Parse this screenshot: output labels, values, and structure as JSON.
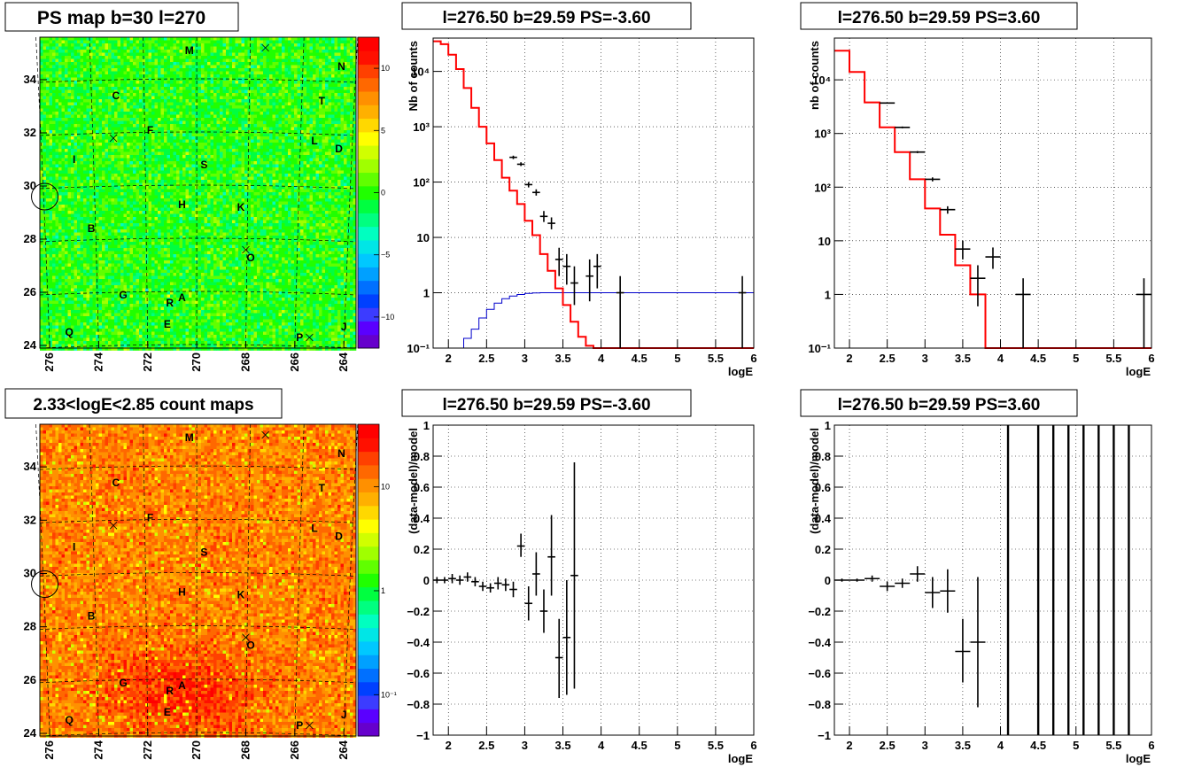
{
  "chart_data": [
    {
      "type": "heatmap",
      "title": "PS map b=30 l=270",
      "x_ticks": [
        "276",
        "274",
        "272",
        "270",
        "268",
        "266",
        "264"
      ],
      "x_tick_values": [
        276,
        274,
        272,
        270,
        268,
        266,
        264
      ],
      "y_ticks": [
        "24",
        "26",
        "28",
        "30",
        "32",
        "34"
      ],
      "y_tick_values": [
        24,
        26,
        28,
        30,
        32,
        34
      ],
      "xlim": [
        276.4,
        263.5
      ],
      "ylim": [
        23.9,
        35.6
      ],
      "palette_ticks": [
        "10",
        "5",
        "0",
        "−5",
        "−10"
      ],
      "palette_tick_values": [
        10,
        5,
        0,
        -5,
        -10
      ],
      "palette_range": [
        -12.5,
        12.5
      ],
      "source_labels": [
        {
          "name": "M",
          "l": 270.3,
          "b": 35.1
        },
        {
          "name": "N",
          "l": 264.1,
          "b": 34.5
        },
        {
          "name": "C",
          "l": 273.3,
          "b": 33.4
        },
        {
          "name": "T",
          "l": 264.9,
          "b": 33.2
        },
        {
          "name": "F",
          "l": 271.9,
          "b": 32.1
        },
        {
          "name": "L",
          "l": 265.2,
          "b": 31.7
        },
        {
          "name": "D",
          "l": 264.2,
          "b": 31.4
        },
        {
          "name": "I",
          "l": 275.0,
          "b": 31.0
        },
        {
          "name": "S",
          "l": 269.7,
          "b": 30.8
        },
        {
          "name": "H",
          "l": 270.6,
          "b": 29.3
        },
        {
          "name": "K",
          "l": 268.2,
          "b": 29.2
        },
        {
          "name": "B",
          "l": 274.3,
          "b": 28.4
        },
        {
          "name": "O",
          "l": 267.8,
          "b": 27.3
        },
        {
          "name": "G",
          "l": 273.0,
          "b": 25.9
        },
        {
          "name": "R",
          "l": 271.1,
          "b": 25.6
        },
        {
          "name": "A",
          "l": 270.6,
          "b": 25.8
        },
        {
          "name": "E",
          "l": 271.2,
          "b": 24.8
        },
        {
          "name": "Q",
          "l": 275.2,
          "b": 24.5
        },
        {
          "name": "P",
          "l": 265.8,
          "b": 24.3
        },
        {
          "name": "J",
          "l": 264.0,
          "b": 24.7
        }
      ],
      "markers_x": [
        {
          "l": 267.2,
          "b": 35.2
        },
        {
          "l": 273.4,
          "b": 31.8
        },
        {
          "l": 268.0,
          "b": 27.6
        },
        {
          "l": 265.4,
          "b": 24.3
        }
      ],
      "circle": {
        "l": 276.2,
        "b": 29.6
      }
    },
    {
      "type": "line",
      "title": "l=276.50 b=29.59 PS=-3.60",
      "xlabel": "logE",
      "ylabel": "Nb of counts",
      "xlim": [
        1.8,
        6.0
      ],
      "ylim": [
        0.1,
        40000
      ],
      "log_y": true,
      "x_ticks": [
        "2",
        "2.5",
        "3",
        "3.5",
        "4",
        "4.5",
        "5",
        "5.5",
        "6"
      ],
      "x_tick_values": [
        2,
        2.5,
        3,
        3.5,
        4,
        4.5,
        5,
        5.5,
        6
      ],
      "y_ticks": [
        "10⁻¹",
        "1",
        "10",
        "10²",
        "10³",
        "10⁴"
      ],
      "y_tick_values": [
        0.1,
        1,
        10,
        100,
        1000,
        10000
      ],
      "grid": true,
      "bin_width": 0.1,
      "red_hist": {
        "start": 1.8,
        "values": [
          35000,
          31000,
          20000,
          11000,
          5000,
          2200,
          1000,
          500,
          250,
          120,
          70,
          40,
          20,
          11,
          5,
          2.5,
          1.2,
          0.6,
          0.3,
          0.16,
          0.11,
          0.1,
          0.1,
          0.1,
          0.1,
          0.1,
          0.1,
          0.1,
          0.1,
          0.1,
          0.1,
          0.1,
          0.1,
          0.1,
          0.1,
          0.1,
          0.1,
          0.1,
          0.1,
          0.1,
          0.1,
          0.1
        ]
      },
      "blue_hist": {
        "start": 2.0,
        "values": [
          0.1,
          0.1,
          0.15,
          0.22,
          0.35,
          0.5,
          0.65,
          0.78,
          0.87,
          0.93,
          0.97,
          0.99,
          1,
          1,
          1,
          1,
          1,
          1,
          1,
          1,
          1,
          1,
          1,
          1,
          1,
          1,
          1,
          1,
          1,
          1,
          1,
          1,
          1,
          1,
          1,
          1,
          1,
          1,
          1,
          1
        ]
      },
      "points": [
        {
          "x": 2.85,
          "y": 280,
          "lo": 260,
          "hi": 300
        },
        {
          "x": 2.95,
          "y": 210,
          "lo": 195,
          "hi": 228
        },
        {
          "x": 3.05,
          "y": 90,
          "lo": 80,
          "hi": 100
        },
        {
          "x": 3.15,
          "y": 65,
          "lo": 57,
          "hi": 74
        },
        {
          "x": 3.25,
          "y": 24,
          "lo": 19,
          "hi": 30
        },
        {
          "x": 3.35,
          "y": 18,
          "lo": 14,
          "hi": 23
        },
        {
          "x": 3.45,
          "y": 4,
          "lo": 2,
          "hi": 6.5
        },
        {
          "x": 3.55,
          "y": 3,
          "lo": 1.4,
          "hi": 5
        },
        {
          "x": 3.65,
          "y": 1.5,
          "lo": 0.6,
          "hi": 3
        },
        {
          "x": 3.85,
          "y": 2,
          "lo": 0.7,
          "hi": 4
        },
        {
          "x": 3.95,
          "y": 3,
          "lo": 1.2,
          "hi": 5
        },
        {
          "x": 4.25,
          "y": 1,
          "lo": 0.1,
          "hi": 2
        },
        {
          "x": 5.85,
          "y": 1,
          "lo": 0.1,
          "hi": 2
        }
      ]
    },
    {
      "type": "line",
      "title": "l=276.50 b=29.59 PS=3.60",
      "xlabel": "logE",
      "ylabel": "nb of counts",
      "xlim": [
        1.8,
        6.0
      ],
      "ylim": [
        0.1,
        60000
      ],
      "log_y": true,
      "x_ticks": [
        "2",
        "2.5",
        "3",
        "3.5",
        "4",
        "4.5",
        "5",
        "5.5",
        "6"
      ],
      "x_tick_values": [
        2,
        2.5,
        3,
        3.5,
        4,
        4.5,
        5,
        5.5,
        6
      ],
      "y_ticks": [
        "10⁻¹",
        "1",
        "10",
        "10²",
        "10³",
        "10⁴"
      ],
      "y_tick_values": [
        0.1,
        1,
        10,
        100,
        1000,
        10000
      ],
      "grid": true,
      "bin_width": 0.2,
      "red_hist": {
        "start": 1.8,
        "values": [
          35000,
          14000,
          3800,
          1300,
          450,
          140,
          40,
          13,
          3.5,
          1,
          0.1,
          0.1,
          0.1,
          0.1,
          0.1,
          0.1,
          0.1,
          0.1,
          0.1,
          0.1,
          0.1
        ]
      },
      "points": [
        {
          "x": 2.5,
          "y": 3700,
          "lo": 3600,
          "hi": 3800
        },
        {
          "x": 2.7,
          "y": 1300,
          "lo": 1250,
          "hi": 1350
        },
        {
          "x": 2.9,
          "y": 450,
          "lo": 430,
          "hi": 470
        },
        {
          "x": 3.1,
          "y": 140,
          "lo": 128,
          "hi": 152
        },
        {
          "x": 3.3,
          "y": 38,
          "lo": 32,
          "hi": 44
        },
        {
          "x": 3.5,
          "y": 7,
          "lo": 4.5,
          "hi": 10
        },
        {
          "x": 3.7,
          "y": 2,
          "lo": 0.6,
          "hi": 3.5
        },
        {
          "x": 3.9,
          "y": 5,
          "lo": 3,
          "hi": 7.5
        },
        {
          "x": 4.3,
          "y": 1,
          "lo": 0.1,
          "hi": 2
        },
        {
          "x": 5.9,
          "y": 1,
          "lo": 0.1,
          "hi": 2
        }
      ]
    },
    {
      "type": "heatmap",
      "title": "2.33<logE<2.85 count maps",
      "x_ticks": [
        "276",
        "274",
        "272",
        "270",
        "268",
        "266",
        "264"
      ],
      "x_tick_values": [
        276,
        274,
        272,
        270,
        268,
        266,
        264
      ],
      "y_ticks": [
        "24",
        "26",
        "28",
        "30",
        "32",
        "34"
      ],
      "y_tick_values": [
        24,
        26,
        28,
        30,
        32,
        34
      ],
      "xlim": [
        276.4,
        263.5
      ],
      "ylim": [
        23.9,
        35.6
      ],
      "palette_ticks": [
        "10",
        "1",
        "10⁻¹"
      ],
      "palette_tick_values": [
        10,
        1,
        0.1
      ],
      "palette_log_range": [
        0.04,
        40
      ],
      "source_labels": [
        {
          "name": "M",
          "l": 270.3,
          "b": 35.1
        },
        {
          "name": "N",
          "l": 264.1,
          "b": 34.5
        },
        {
          "name": "C",
          "l": 273.3,
          "b": 33.4
        },
        {
          "name": "T",
          "l": 264.9,
          "b": 33.2
        },
        {
          "name": "F",
          "l": 271.9,
          "b": 32.1
        },
        {
          "name": "L",
          "l": 265.2,
          "b": 31.7
        },
        {
          "name": "D",
          "l": 264.2,
          "b": 31.4
        },
        {
          "name": "I",
          "l": 275.0,
          "b": 31.0
        },
        {
          "name": "S",
          "l": 269.7,
          "b": 30.8
        },
        {
          "name": "H",
          "l": 270.6,
          "b": 29.3
        },
        {
          "name": "K",
          "l": 268.2,
          "b": 29.2
        },
        {
          "name": "B",
          "l": 274.3,
          "b": 28.4
        },
        {
          "name": "O",
          "l": 267.8,
          "b": 27.3
        },
        {
          "name": "G",
          "l": 273.0,
          "b": 25.9
        },
        {
          "name": "R",
          "l": 271.1,
          "b": 25.6
        },
        {
          "name": "A",
          "l": 270.6,
          "b": 25.8
        },
        {
          "name": "E",
          "l": 271.2,
          "b": 24.8
        },
        {
          "name": "Q",
          "l": 275.2,
          "b": 24.5
        },
        {
          "name": "P",
          "l": 265.8,
          "b": 24.3
        },
        {
          "name": "J",
          "l": 264.0,
          "b": 24.7
        }
      ],
      "markers_x": [
        {
          "l": 267.2,
          "b": 35.2
        },
        {
          "l": 273.4,
          "b": 31.8
        },
        {
          "l": 268.0,
          "b": 27.6
        },
        {
          "l": 265.4,
          "b": 24.3
        }
      ],
      "circle": {
        "l": 276.2,
        "b": 29.6
      }
    },
    {
      "type": "scatter",
      "title": "l=276.50 b=29.59 PS=-3.60",
      "xlabel": "logE",
      "ylabel": "(data-model)/model",
      "xlim": [
        1.8,
        6.0
      ],
      "ylim": [
        -1,
        1
      ],
      "x_ticks": [
        "2",
        "2.5",
        "3",
        "3.5",
        "4",
        "4.5",
        "5",
        "5.5",
        "6"
      ],
      "x_tick_values": [
        2,
        2.5,
        3,
        3.5,
        4,
        4.5,
        5,
        5.5,
        6
      ],
      "y_ticks": [
        "−1",
        "−0.8",
        "−0.6",
        "−0.4",
        "−0.2",
        "0",
        "0.2",
        "0.4",
        "0.6",
        "0.8",
        "1"
      ],
      "y_tick_values": [
        -1,
        -0.8,
        -0.6,
        -0.4,
        -0.2,
        0,
        0.2,
        0.4,
        0.6,
        0.8,
        1
      ],
      "grid": true,
      "half_width": 0.05,
      "points": [
        {
          "x": 1.85,
          "y": 0.0,
          "lo": -0.02,
          "hi": 0.02
        },
        {
          "x": 1.95,
          "y": 0.0,
          "lo": -0.02,
          "hi": 0.02
        },
        {
          "x": 2.05,
          "y": 0.01,
          "lo": -0.02,
          "hi": 0.04
        },
        {
          "x": 2.15,
          "y": 0.0,
          "lo": -0.03,
          "hi": 0.03
        },
        {
          "x": 2.25,
          "y": 0.02,
          "lo": -0.01,
          "hi": 0.05
        },
        {
          "x": 2.35,
          "y": -0.01,
          "lo": -0.04,
          "hi": 0.02
        },
        {
          "x": 2.45,
          "y": -0.04,
          "lo": -0.07,
          "hi": -0.01
        },
        {
          "x": 2.55,
          "y": -0.05,
          "lo": -0.08,
          "hi": -0.02
        },
        {
          "x": 2.65,
          "y": -0.02,
          "lo": -0.06,
          "hi": 0.02
        },
        {
          "x": 2.75,
          "y": -0.03,
          "lo": -0.07,
          "hi": 0.01
        },
        {
          "x": 2.85,
          "y": -0.06,
          "lo": -0.11,
          "hi": -0.01
        },
        {
          "x": 2.95,
          "y": 0.22,
          "lo": 0.15,
          "hi": 0.3
        },
        {
          "x": 3.05,
          "y": -0.15,
          "lo": -0.26,
          "hi": -0.04
        },
        {
          "x": 3.15,
          "y": 0.04,
          "lo": -0.1,
          "hi": 0.18
        },
        {
          "x": 3.25,
          "y": -0.2,
          "lo": -0.34,
          "hi": -0.06
        },
        {
          "x": 3.35,
          "y": 0.15,
          "lo": -0.1,
          "hi": 0.42
        },
        {
          "x": 3.45,
          "y": -0.5,
          "lo": -0.76,
          "hi": -0.25
        },
        {
          "x": 3.55,
          "y": -0.37,
          "lo": -0.74,
          "hi": 0.0
        },
        {
          "x": 3.65,
          "y": 0.03,
          "lo": -0.7,
          "hi": 0.76
        }
      ]
    },
    {
      "type": "scatter",
      "title": "l=276.50 b=29.59 PS=3.60",
      "xlabel": "logE",
      "ylabel": "(data-model)/model",
      "xlim": [
        1.8,
        6.0
      ],
      "ylim": [
        -1,
        1
      ],
      "x_ticks": [
        "2",
        "2.5",
        "3",
        "3.5",
        "4",
        "4.5",
        "5",
        "5.5",
        "6"
      ],
      "x_tick_values": [
        2,
        2.5,
        3,
        3.5,
        4,
        4.5,
        5,
        5.5,
        6
      ],
      "y_ticks": [
        "−1",
        "−0.8",
        "−0.6",
        "−0.4",
        "−0.2",
        "0",
        "0.2",
        "0.4",
        "0.6",
        "0.8",
        "1"
      ],
      "y_tick_values": [
        -1,
        -0.8,
        -0.6,
        -0.4,
        -0.2,
        0,
        0.2,
        0.4,
        0.6,
        0.8,
        1
      ],
      "grid": true,
      "half_width": 0.1,
      "points": [
        {
          "x": 1.9,
          "y": 0.0,
          "lo": -0.01,
          "hi": 0.01
        },
        {
          "x": 2.1,
          "y": 0.0,
          "lo": -0.01,
          "hi": 0.01
        },
        {
          "x": 2.3,
          "y": 0.01,
          "lo": -0.01,
          "hi": 0.03
        },
        {
          "x": 2.5,
          "y": -0.04,
          "lo": -0.07,
          "hi": -0.01
        },
        {
          "x": 2.7,
          "y": -0.02,
          "lo": -0.05,
          "hi": 0.01
        },
        {
          "x": 2.9,
          "y": 0.04,
          "lo": -0.01,
          "hi": 0.09
        },
        {
          "x": 3.1,
          "y": -0.08,
          "lo": -0.18,
          "hi": 0.02
        },
        {
          "x": 3.3,
          "y": -0.07,
          "lo": -0.21,
          "hi": 0.07
        },
        {
          "x": 3.5,
          "y": -0.46,
          "lo": -0.66,
          "hi": -0.25
        },
        {
          "x": 3.7,
          "y": -0.4,
          "lo": -0.82,
          "hi": 0.02
        }
      ],
      "vertical_lines_x": [
        4.1,
        4.5,
        4.7,
        4.9,
        5.1,
        5.3,
        5.5,
        5.7
      ]
    }
  ]
}
